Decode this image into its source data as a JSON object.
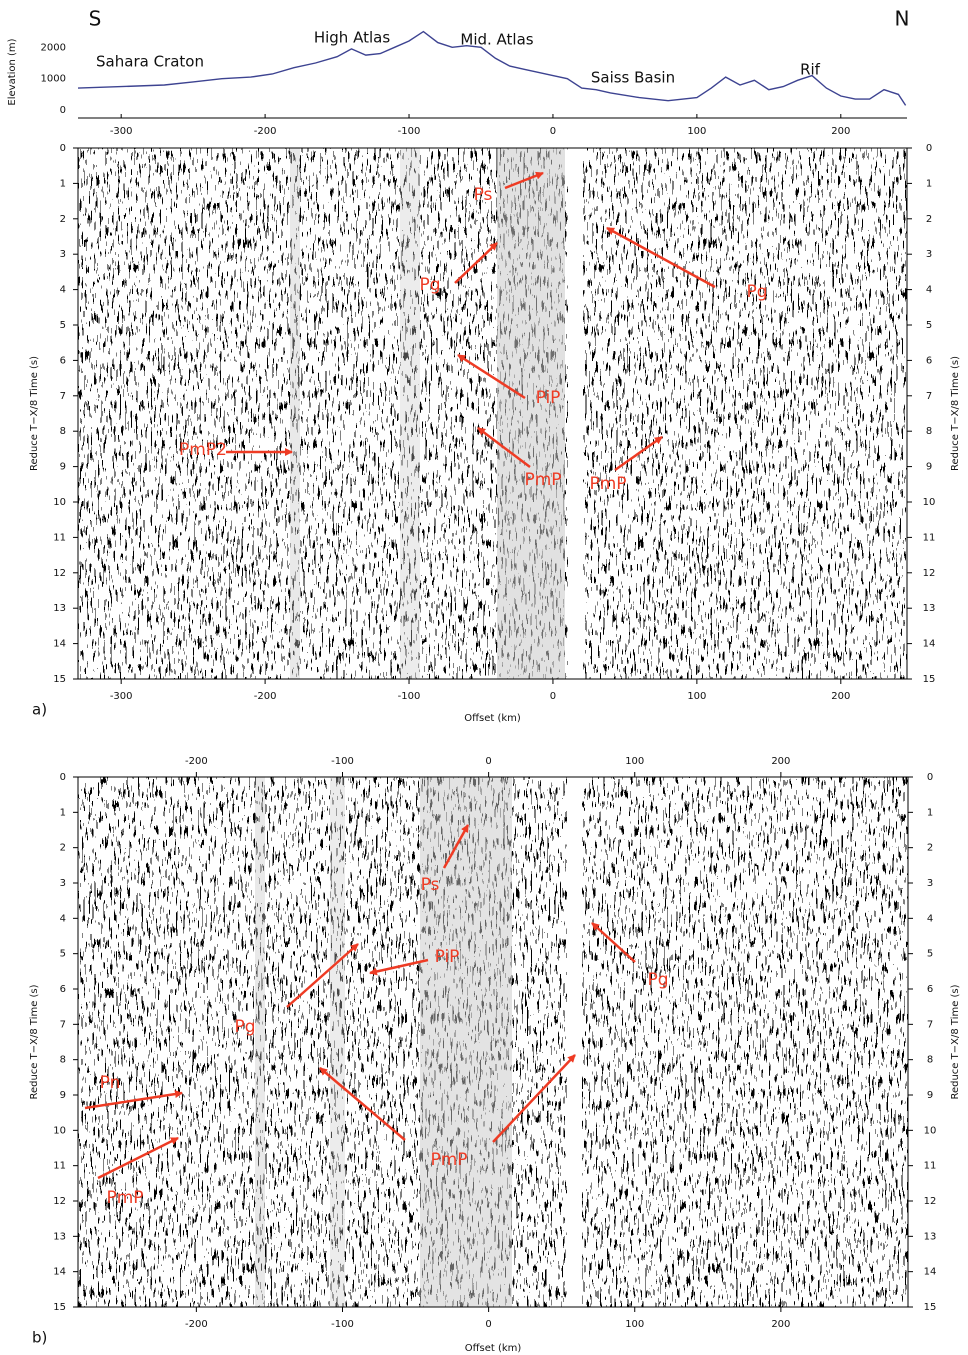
{
  "chart_data": [
    {
      "type": "line",
      "ylabel": "Elevation (m)",
      "x": [
        -330,
        -300,
        -270,
        -250,
        -230,
        -210,
        -195,
        -180,
        -165,
        -150,
        -140,
        -130,
        -120,
        -110,
        -100,
        -90,
        -80,
        -70,
        -60,
        -50,
        -40,
        -30,
        -20,
        -10,
        0,
        10,
        20,
        30,
        40,
        60,
        80,
        100,
        110,
        120,
        130,
        140,
        150,
        160,
        170,
        180,
        190,
        200,
        210,
        220,
        230,
        240,
        245
      ],
      "values": [
        700,
        750,
        800,
        900,
        1000,
        1050,
        1150,
        1350,
        1500,
        1700,
        1950,
        1750,
        1800,
        2000,
        2200,
        2500,
        2150,
        2000,
        2050,
        2000,
        1650,
        1400,
        1300,
        1200,
        1100,
        1000,
        700,
        650,
        550,
        400,
        300,
        400,
        700,
        1050,
        800,
        950,
        650,
        750,
        950,
        1100,
        700,
        450,
        350,
        350,
        650,
        500,
        150
      ],
      "color": "#3d4391",
      "xlim": [
        -330,
        246
      ],
      "xticks": [
        -300,
        -200,
        -100,
        0,
        100,
        200
      ],
      "ylim": [
        -250,
        2550
      ],
      "yticks": [
        0,
        1000,
        2000
      ],
      "annotations": [
        {
          "text": "S"
        },
        {
          "text": "N"
        },
        {
          "text": "Sahara Craton"
        },
        {
          "text": "High Atlas"
        },
        {
          "text": "Mid. Atlas"
        },
        {
          "text": "Saiss Basin"
        },
        {
          "text": "Rif"
        }
      ]
    },
    {
      "type": "seismic",
      "label": "a)",
      "xlabel": "Offset (km)",
      "ylabel": "Reduce T−X/8 Time (s)",
      "xlim": [
        -330,
        246
      ],
      "xticks": [
        -300,
        -200,
        -100,
        0,
        100,
        200
      ],
      "ylim": [
        0,
        15
      ],
      "yticks": [
        0,
        1,
        2,
        3,
        4,
        5,
        6,
        7,
        8,
        9,
        10,
        11,
        12,
        13,
        14,
        15
      ],
      "annotation_color": "#ee3b24",
      "annotations": [
        {
          "text": "Ps"
        },
        {
          "text": "Pg"
        },
        {
          "text": "Pg"
        },
        {
          "text": "PiP"
        },
        {
          "text": "PmP"
        },
        {
          "text": "PmP"
        },
        {
          "text": "PmP2"
        }
      ]
    },
    {
      "type": "seismic",
      "label": "b)",
      "xlabel": "Offset (km)",
      "ylabel": "Reduce T−X/8 Time (s)",
      "xlim": [
        -281,
        287
      ],
      "xticks": [
        -200,
        -100,
        0,
        100,
        200
      ],
      "ylim": [
        0,
        15
      ],
      "yticks": [
        0,
        1,
        2,
        3,
        4,
        5,
        6,
        7,
        8,
        9,
        10,
        11,
        12,
        13,
        14,
        15
      ],
      "annotation_color": "#ee3b24",
      "annotations": [
        {
          "text": "Ps"
        },
        {
          "text": "Pg"
        },
        {
          "text": "PiP"
        },
        {
          "text": "Pg"
        },
        {
          "text": "Pn"
        },
        {
          "text": "PmP"
        },
        {
          "text": "PmP"
        }
      ]
    }
  ]
}
